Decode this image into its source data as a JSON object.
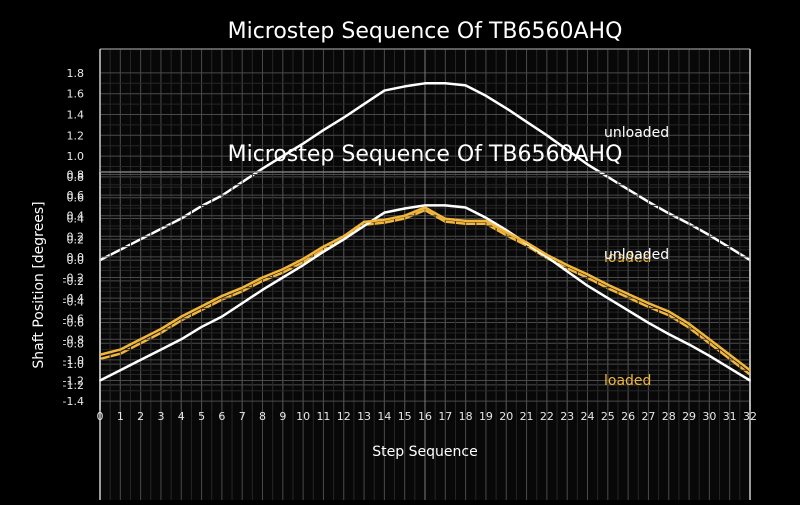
{
  "chart_data": [
    {
      "type": "line",
      "title": "Microstep Sequence Of TB6560AHQ",
      "xlabel": "Step Sequence",
      "ylabel": "Shaft Position [degrees]",
      "grid": true,
      "x": [
        0,
        1,
        2,
        3,
        4,
        5,
        6,
        7,
        8,
        9,
        10,
        11,
        12,
        13,
        14,
        15,
        16,
        17,
        18,
        19,
        20,
        21,
        22,
        23,
        24,
        25,
        26,
        27,
        28,
        29,
        30,
        31,
        32
      ],
      "xlim": [
        0,
        32
      ],
      "ylim": [
        -1.2,
        1.9
      ],
      "yticks": [
        -1.2,
        -1.0,
        -0.8,
        -0.6,
        -0.4,
        -0.2,
        0.0,
        0.2,
        0.4,
        0.6,
        0.8,
        1.0,
        1.2,
        1.4,
        1.6,
        1.8
      ],
      "series": [
        {
          "name": "unloaded",
          "color": "#ffffff",
          "values": [
            0.0,
            0.1,
            0.2,
            0.3,
            0.4,
            0.52,
            0.62,
            0.75,
            0.88,
            1.0,
            1.12,
            1.25,
            1.37,
            1.5,
            1.63,
            1.67,
            1.7,
            1.7,
            1.68,
            1.58,
            1.46,
            1.33,
            1.2,
            1.06,
            0.92,
            0.8,
            0.68,
            0.56,
            0.45,
            0.35,
            0.24,
            0.12,
            0.0
          ]
        },
        {
          "name": "loaded",
          "color": "#f2b63a",
          "values": [
            -0.95,
            -0.9,
            -0.8,
            -0.7,
            -0.58,
            -0.48,
            -0.38,
            -0.3,
            -0.2,
            -0.12,
            -0.02,
            0.1,
            0.2,
            0.34,
            0.36,
            0.4,
            0.48,
            0.37,
            0.35,
            0.35,
            0.24,
            0.14,
            0.02,
            -0.08,
            -0.17,
            -0.27,
            -0.36,
            -0.45,
            -0.53,
            -0.65,
            -0.8,
            -0.95,
            -1.1
          ]
        }
      ]
    },
    {
      "type": "line",
      "title": "Microstep Sequence Of TB6560AHQ",
      "xlabel": "Step Sequence",
      "ylabel": "Shaft Position [degrees]",
      "grid": true,
      "x": [
        0,
        1,
        2,
        3,
        4,
        5,
        6,
        7,
        8,
        9,
        10,
        11,
        12,
        13,
        14,
        15,
        16,
        17,
        18,
        19,
        20,
        21,
        22,
        23,
        24,
        25,
        26,
        27,
        28,
        29,
        30,
        31,
        32
      ],
      "xlim": [
        0,
        32
      ],
      "ylim": [
        -1.4,
        0.8
      ],
      "yticks": [
        -1.4,
        -1.2,
        -1.0,
        -0.8,
        -0.6,
        -0.4,
        -0.2,
        0.0,
        0.2,
        0.4,
        0.6,
        0.8
      ],
      "series": [
        {
          "name": "unloaded",
          "color": "#ffffff",
          "values": [
            -1.2,
            -1.1,
            -1.0,
            -0.9,
            -0.8,
            -0.68,
            -0.58,
            -0.45,
            -0.32,
            -0.2,
            -0.08,
            0.05,
            0.17,
            0.3,
            0.43,
            0.47,
            0.5,
            0.5,
            0.48,
            0.38,
            0.26,
            0.13,
            0.0,
            -0.14,
            -0.28,
            -0.4,
            -0.52,
            -0.64,
            -0.75,
            -0.85,
            -0.96,
            -1.08,
            -1.2
          ]
        },
        {
          "name": "loaded",
          "color": "#f2b63a",
          "values": [
            -0.95,
            -0.9,
            -0.8,
            -0.7,
            -0.58,
            -0.48,
            -0.38,
            -0.3,
            -0.2,
            -0.12,
            -0.02,
            0.1,
            0.2,
            0.34,
            0.36,
            0.4,
            0.48,
            0.37,
            0.35,
            0.35,
            0.24,
            0.14,
            0.02,
            -0.08,
            -0.17,
            -0.27,
            -0.36,
            -0.45,
            -0.53,
            -0.65,
            -0.8,
            -0.95,
            -1.1
          ]
        }
      ]
    }
  ]
}
